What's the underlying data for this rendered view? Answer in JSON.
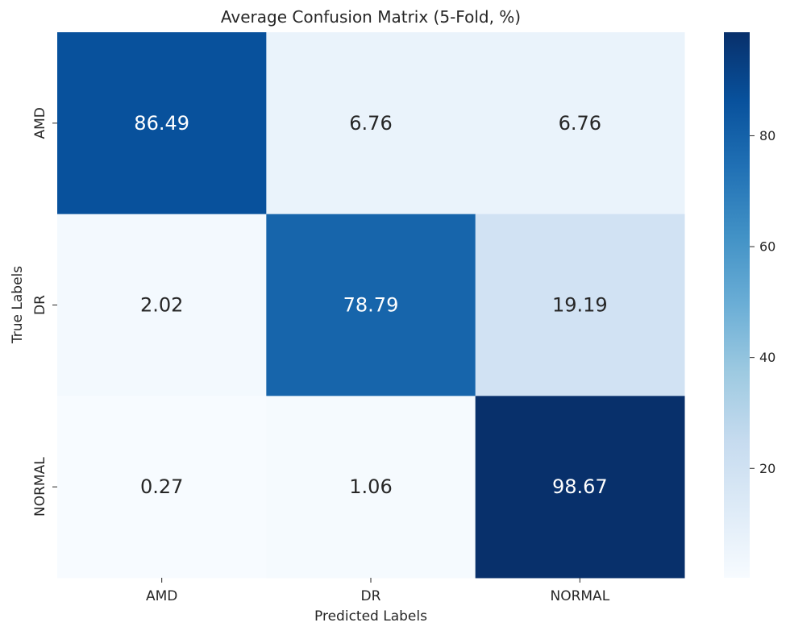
{
  "chart_data": {
    "type": "heatmap",
    "title": "Average Confusion Matrix (5-Fold, %)",
    "xlabel": "Predicted Labels",
    "ylabel": "True Labels",
    "x_categories": [
      "AMD",
      "DR",
      "NORMAL"
    ],
    "y_categories": [
      "AMD",
      "DR",
      "NORMAL"
    ],
    "values": [
      [
        86.49,
        6.76,
        6.76
      ],
      [
        2.02,
        78.79,
        19.19
      ],
      [
        0.27,
        1.06,
        98.67
      ]
    ],
    "value_labels": [
      [
        "86.49",
        "6.76",
        "6.76"
      ],
      [
        "2.02",
        "78.79",
        "19.19"
      ],
      [
        "0.27",
        "1.06",
        "98.67"
      ]
    ],
    "colormap": "Blues",
    "colorbar": {
      "range": [
        0.27,
        98.67
      ],
      "ticks": [
        20,
        40,
        60,
        80
      ],
      "tick_labels": [
        "20",
        "40",
        "60",
        "80"
      ]
    },
    "grid": false,
    "legend": "colorbar-right"
  }
}
